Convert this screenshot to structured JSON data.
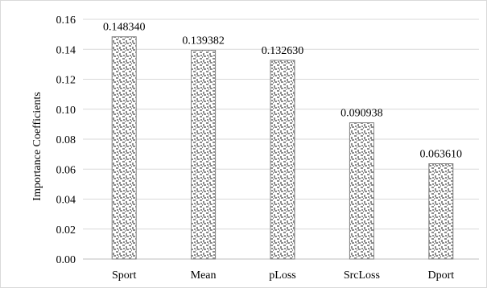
{
  "chart_data": {
    "type": "bar",
    "title": "",
    "xlabel": "",
    "ylabel": "Importance Coefficients",
    "categories": [
      "Sport",
      "Mean",
      "pLoss",
      "SrcLoss",
      "Dport"
    ],
    "values": [
      0.14834,
      0.139382,
      0.13263,
      0.090938,
      0.06361
    ],
    "data_labels": [
      "0.148340",
      "0.139382",
      "0.132630",
      "0.090938",
      "0.063610"
    ],
    "ylim": [
      0,
      0.16
    ],
    "yticks": [
      "0.00",
      "0.02",
      "0.04",
      "0.06",
      "0.08",
      "0.10",
      "0.12",
      "0.14",
      "0.16"
    ],
    "grid": true,
    "legend": "none",
    "bar_pattern": "dotted-grey",
    "colors": {
      "bar_fill": "#8c8c8c",
      "bar_stroke": "#7f7f7f",
      "grid": "#d9d9d9"
    }
  }
}
